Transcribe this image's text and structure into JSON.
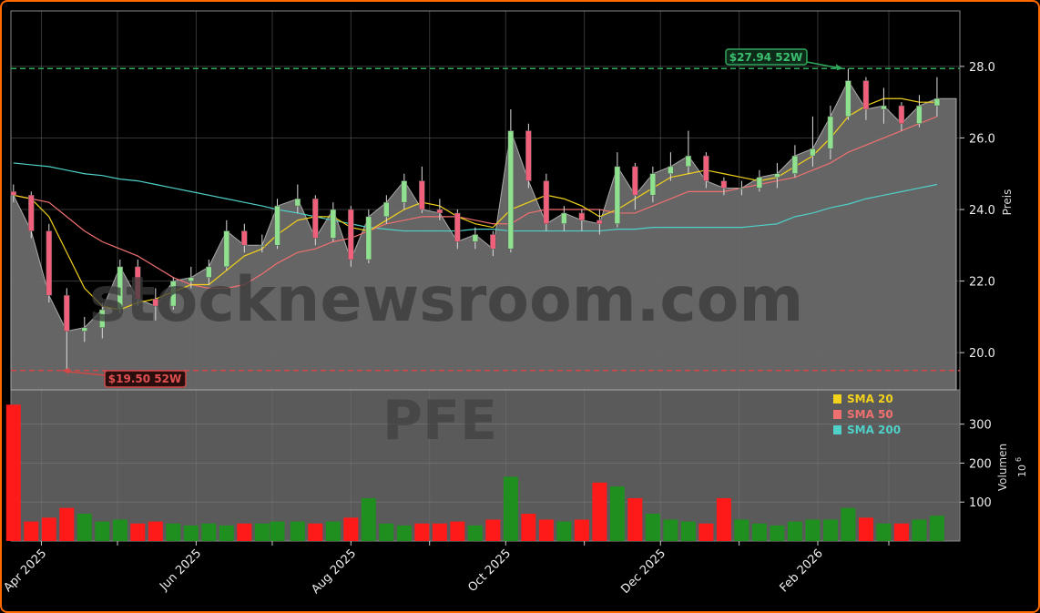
{
  "chart_data": {
    "type": "candlestick",
    "ticker": "PFE",
    "watermark": "stocknewsroom.com",
    "colors": {
      "frame": "#ff6a00",
      "up_candle": "#8fe08f",
      "down_candle": "#f0607a",
      "area": "#6a6a6a",
      "volume_up": "#1f8f1f",
      "volume_down": "#ff1a1a",
      "sma20": "#f2d21b",
      "sma50": "#f07070",
      "sma200": "#4fd0c8",
      "high_line": "#2ea85a",
      "low_line": "#d04848"
    },
    "xlim": [
      "2025-03-20",
      "2026-03-29"
    ],
    "x_ticks": [
      {
        "date": "2025-04-01",
        "label": "Apr 2025"
      },
      {
        "date": "2025-06-01",
        "label": "Jun 2025"
      },
      {
        "date": "2025-08-01",
        "label": "Aug 2025"
      },
      {
        "date": "2025-10-01",
        "label": "Oct 2025"
      },
      {
        "date": "2025-12-01",
        "label": "Dec 2025"
      },
      {
        "date": "2026-02-01",
        "label": "Feb 2026"
      }
    ],
    "x_minor_ticks": [
      "2025-05-01",
      "2025-07-01",
      "2025-09-01",
      "2025-11-01",
      "2026-01-01",
      "2026-03-01"
    ],
    "price_axis": {
      "label": "Preis",
      "ylim": [
        18.96,
        29.55
      ],
      "ticks": [
        "20.0",
        "22.0",
        "24.0",
        "26.0",
        "28.0"
      ],
      "side": "right"
    },
    "volume_axis": {
      "label": "Volumen",
      "unit": "10",
      "unit_exp": "6",
      "ylim": [
        0,
        388
      ],
      "ticks": [
        "100",
        "200",
        "300"
      ],
      "side": "right"
    },
    "annotations": {
      "high": {
        "value": 27.94,
        "label": "$27.94 52W",
        "date": "2026-02-11"
      },
      "low": {
        "value": 19.5,
        "label": "$19.50 52W",
        "date": "2025-04-09"
      }
    },
    "legend": {
      "position": "top-right",
      "items": [
        {
          "label": "SMA 20",
          "key": "sma20"
        },
        {
          "label": "SMA 50",
          "key": "sma50"
        },
        {
          "label": "SMA 200",
          "key": "sma200"
        }
      ]
    },
    "dates": [
      "2025-03-21",
      "2025-03-28",
      "2025-04-04",
      "2025-04-11",
      "2025-04-18",
      "2025-04-25",
      "2025-05-02",
      "2025-05-09",
      "2025-05-16",
      "2025-05-23",
      "2025-05-30",
      "2025-06-06",
      "2025-06-13",
      "2025-06-20",
      "2025-06-27",
      "2025-07-03",
      "2025-07-11",
      "2025-07-18",
      "2025-07-25",
      "2025-08-01",
      "2025-08-08",
      "2025-08-15",
      "2025-08-22",
      "2025-08-29",
      "2025-09-05",
      "2025-09-12",
      "2025-09-19",
      "2025-09-26",
      "2025-10-03",
      "2025-10-10",
      "2025-10-17",
      "2025-10-24",
      "2025-10-31",
      "2025-11-07",
      "2025-11-14",
      "2025-11-21",
      "2025-11-28",
      "2025-12-05",
      "2025-12-12",
      "2025-12-19",
      "2025-12-26",
      "2026-01-02",
      "2026-01-09",
      "2026-01-16",
      "2026-01-23",
      "2026-01-30",
      "2026-02-06",
      "2026-02-13",
      "2026-02-20",
      "2026-02-27",
      "2026-03-06",
      "2026-03-13",
      "2026-03-20"
    ],
    "ohlc": [
      [
        24.5,
        24.7,
        24.2,
        24.4
      ],
      [
        24.4,
        24.5,
        23.2,
        23.4
      ],
      [
        23.4,
        23.6,
        21.4,
        21.6
      ],
      [
        21.6,
        21.8,
        19.5,
        20.6
      ],
      [
        20.6,
        21.0,
        20.3,
        20.7
      ],
      [
        20.7,
        21.4,
        20.4,
        21.2
      ],
      [
        21.2,
        22.6,
        21.1,
        22.4
      ],
      [
        22.4,
        22.6,
        21.3,
        21.5
      ],
      [
        21.5,
        21.8,
        20.9,
        21.3
      ],
      [
        21.3,
        22.1,
        21.2,
        22.0
      ],
      [
        22.0,
        22.4,
        21.8,
        22.1
      ],
      [
        22.1,
        22.6,
        21.9,
        22.4
      ],
      [
        22.4,
        23.7,
        22.3,
        23.4
      ],
      [
        23.4,
        23.6,
        22.8,
        23.0
      ],
      [
        23.0,
        23.3,
        22.8,
        23.0
      ],
      [
        23.0,
        24.3,
        22.9,
        24.1
      ],
      [
        24.1,
        24.7,
        23.9,
        24.3
      ],
      [
        24.3,
        24.4,
        23.0,
        23.2
      ],
      [
        23.2,
        24.2,
        23.1,
        24.0
      ],
      [
        24.0,
        24.1,
        22.4,
        22.6
      ],
      [
        22.6,
        24.0,
        22.5,
        23.8
      ],
      [
        23.8,
        24.4,
        23.6,
        24.2
      ],
      [
        24.2,
        25.0,
        24.0,
        24.8
      ],
      [
        24.8,
        25.2,
        23.9,
        24.0
      ],
      [
        24.0,
        24.3,
        23.7,
        23.9
      ],
      [
        23.9,
        24.0,
        22.9,
        23.1
      ],
      [
        23.1,
        23.5,
        22.9,
        23.3
      ],
      [
        23.3,
        23.4,
        22.7,
        22.9
      ],
      [
        22.9,
        26.8,
        22.8,
        26.2
      ],
      [
        26.2,
        26.4,
        24.6,
        24.8
      ],
      [
        24.8,
        25.0,
        23.4,
        23.6
      ],
      [
        23.6,
        24.1,
        23.4,
        23.9
      ],
      [
        23.9,
        24.0,
        23.4,
        23.7
      ],
      [
        23.7,
        24.0,
        23.3,
        23.6
      ],
      [
        23.6,
        25.6,
        23.5,
        25.2
      ],
      [
        25.2,
        25.3,
        24.0,
        24.4
      ],
      [
        24.4,
        25.2,
        24.2,
        25.0
      ],
      [
        25.0,
        25.6,
        24.8,
        25.2
      ],
      [
        25.2,
        26.2,
        25.0,
        25.5
      ],
      [
        25.5,
        25.6,
        24.6,
        24.8
      ],
      [
        24.8,
        24.9,
        24.4,
        24.6
      ],
      [
        24.6,
        24.8,
        24.4,
        24.6
      ],
      [
        24.6,
        25.1,
        24.5,
        24.9
      ],
      [
        24.9,
        25.3,
        24.6,
        25.0
      ],
      [
        25.0,
        25.8,
        24.9,
        25.5
      ],
      [
        25.5,
        26.6,
        25.2,
        25.7
      ],
      [
        25.7,
        26.9,
        25.4,
        26.6
      ],
      [
        26.6,
        27.94,
        26.5,
        27.6
      ],
      [
        27.6,
        27.7,
        26.5,
        26.8
      ],
      [
        26.8,
        27.4,
        26.4,
        26.9
      ],
      [
        26.9,
        27.0,
        26.2,
        26.4
      ],
      [
        26.4,
        27.2,
        26.3,
        26.9
      ],
      [
        26.9,
        27.7,
        26.6,
        27.1
      ]
    ],
    "volume": [
      350,
      50,
      60,
      85,
      70,
      50,
      55,
      45,
      50,
      45,
      40,
      45,
      40,
      45,
      45,
      50,
      50,
      45,
      50,
      60,
      110,
      45,
      40,
      45,
      45,
      50,
      40,
      55,
      165,
      70,
      55,
      50,
      55,
      150,
      140,
      110,
      70,
      55,
      50,
      45,
      110,
      55,
      45,
      40,
      50,
      55,
      55,
      85,
      60,
      45,
      45,
      55,
      65
    ],
    "sma20": [
      24.4,
      24.3,
      23.8,
      22.8,
      21.8,
      21.3,
      21.2,
      21.4,
      21.5,
      21.7,
      21.9,
      21.9,
      22.3,
      22.7,
      22.9,
      23.3,
      23.7,
      23.8,
      23.8,
      23.5,
      23.4,
      23.7,
      24.0,
      24.2,
      24.1,
      23.8,
      23.6,
      23.5,
      24.0,
      24.2,
      24.4,
      24.3,
      24.1,
      23.8,
      24.0,
      24.3,
      24.6,
      24.9,
      25.0,
      25.1,
      25.0,
      24.9,
      24.8,
      24.9,
      25.2,
      25.5,
      26.0,
      26.6,
      26.9,
      27.1,
      27.1,
      27.0,
      27.0
    ],
    "sma50": [
      24.4,
      24.3,
      24.2,
      23.8,
      23.4,
      23.1,
      22.9,
      22.7,
      22.4,
      22.1,
      21.9,
      21.8,
      21.8,
      21.9,
      22.2,
      22.5,
      22.8,
      22.9,
      23.1,
      23.2,
      23.4,
      23.6,
      23.7,
      23.8,
      23.8,
      23.8,
      23.7,
      23.6,
      23.6,
      23.9,
      24.0,
      24.0,
      24.0,
      24.0,
      23.9,
      23.9,
      24.1,
      24.3,
      24.5,
      24.5,
      24.5,
      24.6,
      24.7,
      24.8,
      24.9,
      25.1,
      25.3,
      25.6,
      25.8,
      26.0,
      26.2,
      26.4,
      26.6
    ],
    "sma200": [
      25.3,
      25.25,
      25.2,
      25.1,
      25.0,
      24.95,
      24.85,
      24.8,
      24.7,
      24.6,
      24.5,
      24.4,
      24.3,
      24.2,
      24.1,
      24.0,
      23.9,
      23.8,
      23.7,
      23.6,
      23.5,
      23.45,
      23.4,
      23.4,
      23.4,
      23.4,
      23.45,
      23.45,
      23.4,
      23.4,
      23.4,
      23.4,
      23.4,
      23.4,
      23.45,
      23.45,
      23.5,
      23.5,
      23.5,
      23.5,
      23.5,
      23.5,
      23.55,
      23.6,
      23.8,
      23.9,
      24.05,
      24.15,
      24.3,
      24.4,
      24.5,
      24.6,
      24.7
    ]
  }
}
